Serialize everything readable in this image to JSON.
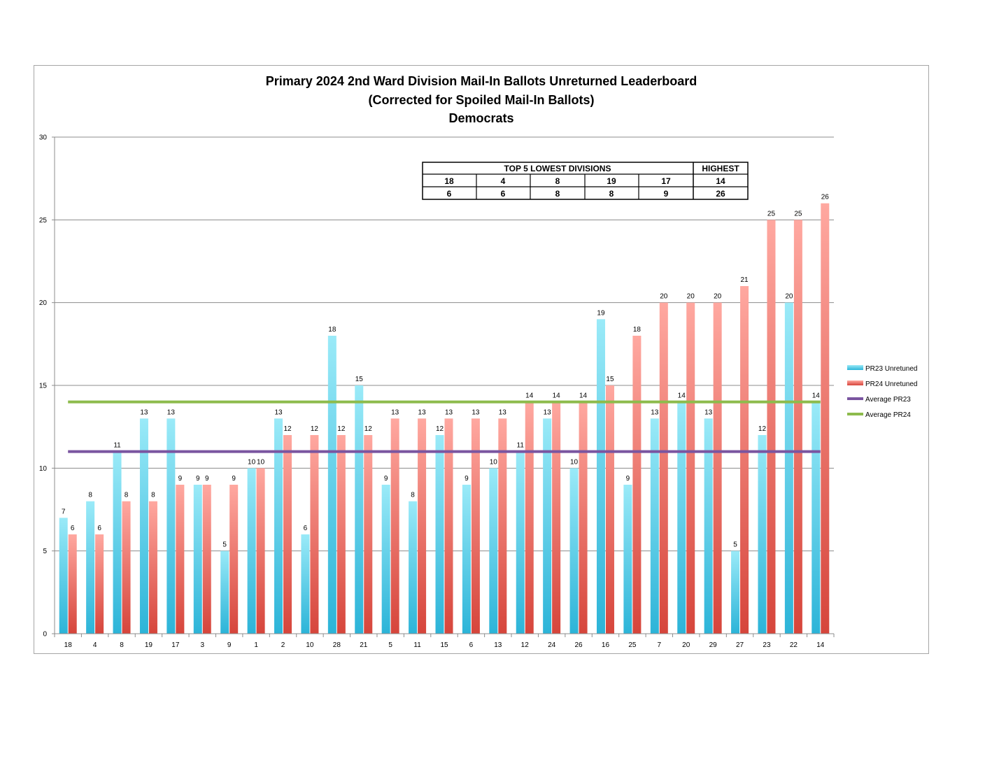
{
  "chart_data": {
    "type": "bar",
    "title": [
      "Primary 2024 2nd Ward Division Mail-In Ballots Unreturned Leaderboard",
      "(Corrected for Spoiled Mail-In Ballots)",
      "Democrats"
    ],
    "categories": [
      "18",
      "4",
      "8",
      "19",
      "17",
      "3",
      "9",
      "1",
      "2",
      "10",
      "28",
      "21",
      "5",
      "11",
      "15",
      "6",
      "13",
      "12",
      "24",
      "26",
      "16",
      "25",
      "7",
      "20",
      "29",
      "27",
      "23",
      "22",
      "14"
    ],
    "series": [
      {
        "name": "PR23 Unretuned",
        "values": [
          7,
          8,
          11,
          13,
          13,
          9,
          5,
          10,
          13,
          6,
          18,
          15,
          9,
          8,
          12,
          9,
          10,
          11,
          13,
          10,
          19,
          9,
          13,
          14,
          13,
          5,
          12,
          20,
          14
        ],
        "color": "#5fd0ea"
      },
      {
        "name": "PR24 Unretuned",
        "values": [
          6,
          6,
          8,
          8,
          9,
          9,
          9,
          10,
          12,
          12,
          12,
          12,
          13,
          13,
          13,
          13,
          13,
          14,
          14,
          14,
          15,
          18,
          20,
          20,
          20,
          21,
          25,
          25,
          26
        ],
        "color": "#f0877e"
      }
    ],
    "lines": [
      {
        "name": "Average PR23",
        "value": 11,
        "color": "#7a55a0"
      },
      {
        "name": "Average PR24",
        "value": 14,
        "color": "#8dbb4c"
      }
    ],
    "ylim": [
      0,
      30
    ],
    "yticks": [
      0,
      5,
      10,
      15,
      20,
      25,
      30
    ],
    "grid": true,
    "legend": "right"
  },
  "leaderboard": {
    "lowest_header": "TOP 5 LOWEST DIVISIONS",
    "highest_header": "HIGHEST",
    "lowest_divisions": [
      "18",
      "4",
      "8",
      "19",
      "17"
    ],
    "lowest_values": [
      "6",
      "6",
      "8",
      "8",
      "9"
    ],
    "highest_division": "14",
    "highest_value": "26"
  }
}
